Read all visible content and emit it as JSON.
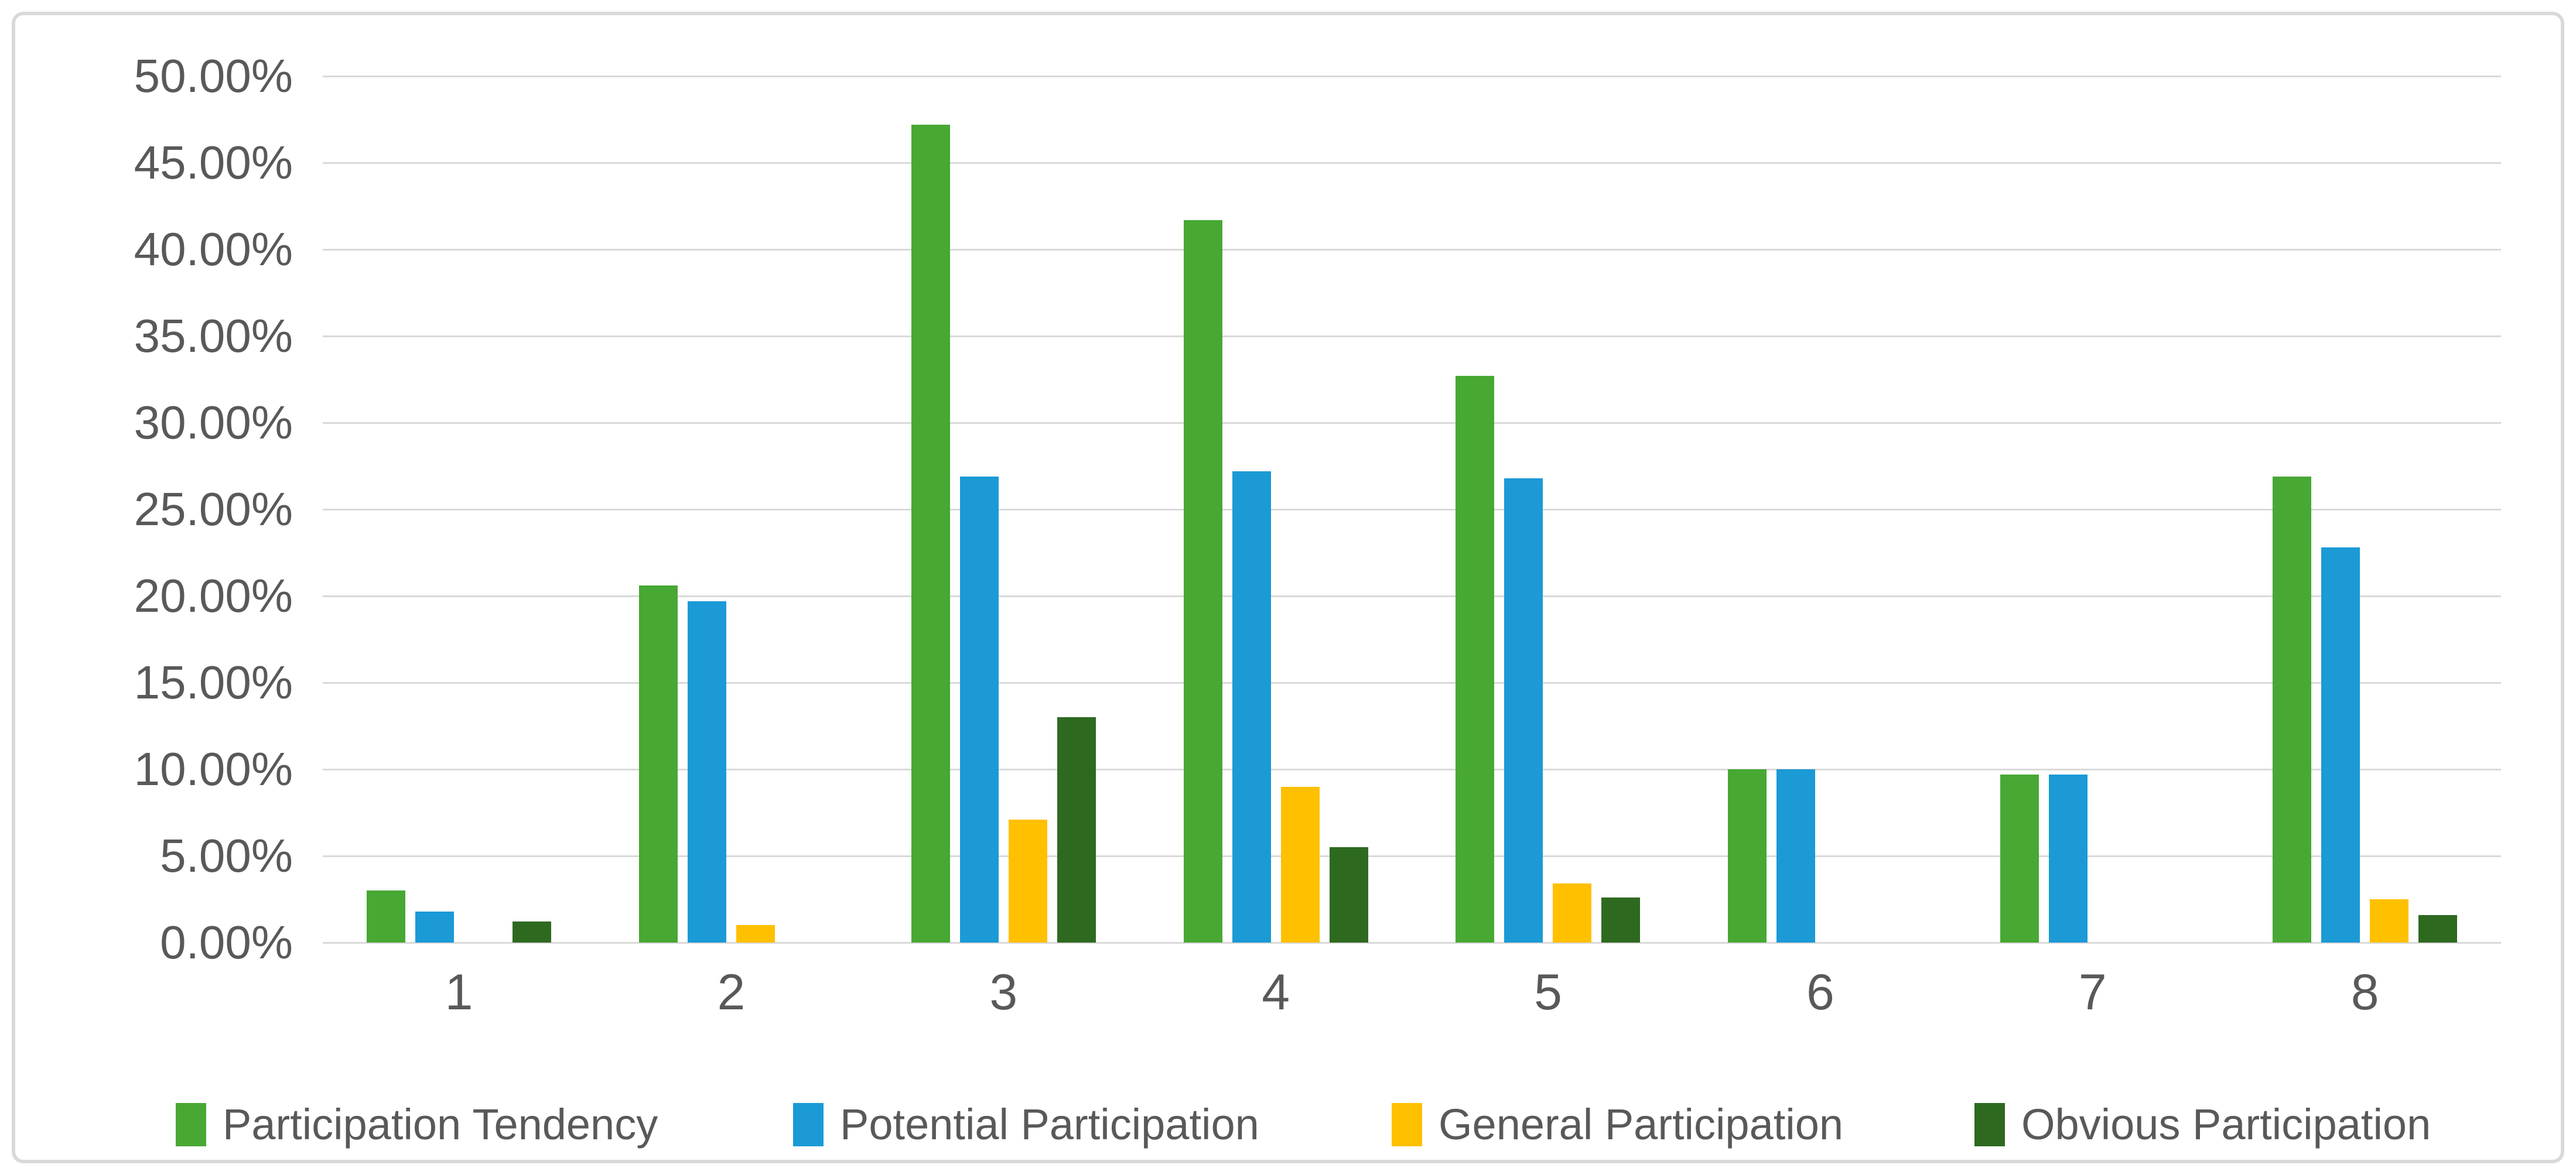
{
  "chart_data": {
    "type": "bar",
    "title": "",
    "xlabel": "",
    "ylabel": "",
    "categories": [
      "1",
      "2",
      "3",
      "4",
      "5",
      "6",
      "7",
      "8"
    ],
    "series": [
      {
        "name": "Participation Tendency",
        "color": "#47A834",
        "values": [
          3.0,
          20.6,
          47.2,
          41.7,
          32.7,
          10.0,
          9.7,
          26.9
        ]
      },
      {
        "name": "Potential Participation",
        "color": "#1B9AD6",
        "values": [
          1.8,
          19.7,
          26.9,
          27.2,
          26.8,
          10.0,
          9.7,
          22.8
        ]
      },
      {
        "name": "General Participation",
        "color": "#FFC000",
        "values": [
          0,
          1.0,
          7.1,
          9.0,
          3.4,
          0,
          0,
          2.5
        ]
      },
      {
        "name": "Obvious Participation",
        "color": "#2D6A20",
        "values": [
          1.2,
          0,
          13.0,
          5.5,
          2.6,
          0,
          0,
          1.6
        ]
      }
    ],
    "ylim": [
      0,
      50
    ],
    "ytick_step": 5,
    "yticks": [
      "50.00%",
      "45.00%",
      "40.00%",
      "35.00%",
      "30.00%",
      "25.00%",
      "20.00%",
      "15.00%",
      "10.00%",
      "5.00%",
      "0.00%"
    ],
    "grid": true,
    "legend_position": "bottom"
  },
  "style": {
    "gridline_color": "#D9D9D9",
    "axis_text_color": "#595959",
    "frame_border_color": "#D9D9D9",
    "background_color": "#FFFFFF"
  }
}
